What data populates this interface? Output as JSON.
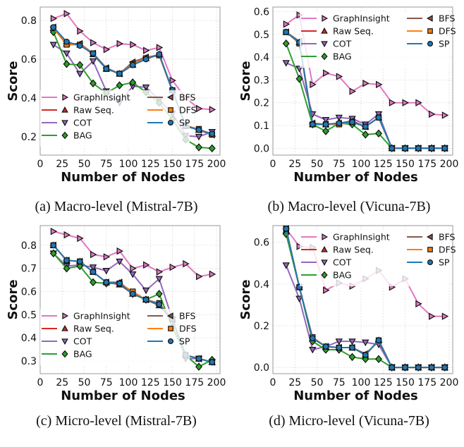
{
  "colors": {
    "GraphInsight": "#e377c2",
    "Raw Seq.": "#d62728",
    "COT": "#9467bd",
    "BAG": "#2ca02c",
    "BFS": "#8c564b",
    "DFS": "#ff7f0e",
    "SP": "#1f77b4"
  },
  "markers": {
    "GraphInsight": "triangle-right",
    "Raw Seq.": "triangle-up",
    "COT": "triangle-down",
    "BAG": "diamond",
    "BFS": "triangle-left",
    "DFS": "square",
    "SP": "circle"
  },
  "chart_data": [
    {
      "type": "line",
      "caption": "(a) Macro-level (Mistral-7B)",
      "xlabel": "Number of Nodes",
      "ylabel": "Score",
      "xlim": [
        0,
        204
      ],
      "ylim": [
        0.105,
        0.869
      ],
      "xticks": [
        0,
        25,
        50,
        75,
        100,
        125,
        150,
        175,
        200
      ],
      "yticks": [
        0.2,
        0.4,
        0.6,
        0.8
      ],
      "grid": true,
      "legend": "lower-left",
      "x": [
        15,
        30,
        45,
        60,
        75,
        90,
        105,
        120,
        135,
        150,
        165,
        180,
        195
      ],
      "series": [
        {
          "name": "GraphInsight",
          "values": [
            0.81,
            0.835,
            0.745,
            0.685,
            0.65,
            0.68,
            0.675,
            0.645,
            0.66,
            0.49,
            0.4,
            0.345,
            0.34
          ]
        },
        {
          "name": "Raw Seq.",
          "values": [
            0.76,
            0.68,
            0.675,
            0.625,
            0.55,
            0.525,
            0.57,
            0.605,
            0.625,
            0.44,
            0.255,
            0.235,
            0.215
          ]
        },
        {
          "name": "COT",
          "values": [
            0.675,
            0.63,
            0.525,
            0.59,
            0.435,
            0.375,
            0.46,
            0.455,
            0.39,
            0.32,
            0.205,
            0.2,
            0.225
          ]
        },
        {
          "name": "BAG",
          "values": [
            0.74,
            0.575,
            0.57,
            0.475,
            0.425,
            0.465,
            0.48,
            0.43,
            0.375,
            0.29,
            0.185,
            0.145,
            0.14
          ]
        },
        {
          "name": "BFS",
          "values": [
            0.765,
            0.68,
            0.68,
            0.63,
            0.555,
            0.525,
            0.585,
            0.61,
            0.62,
            0.435,
            0.26,
            0.235,
            0.21
          ]
        },
        {
          "name": "DFS",
          "values": [
            0.76,
            0.675,
            0.675,
            0.63,
            0.55,
            0.525,
            0.575,
            0.605,
            0.62,
            0.44,
            0.255,
            0.24,
            0.21
          ]
        },
        {
          "name": "SP",
          "values": [
            0.765,
            0.69,
            0.67,
            0.63,
            0.55,
            0.525,
            0.57,
            0.6,
            0.625,
            0.44,
            0.255,
            0.235,
            0.215
          ]
        }
      ]
    },
    {
      "type": "line",
      "caption": "(b) Macro-level (Vicuna-7B)",
      "xlabel": "Number of Nodes",
      "ylabel": "Score",
      "xlim": [
        0,
        204
      ],
      "ylim": [
        -0.03,
        0.62
      ],
      "xticks": [
        0,
        25,
        50,
        75,
        100,
        125,
        150,
        175,
        200
      ],
      "yticks": [
        0.0,
        0.1,
        0.2,
        0.3,
        0.4,
        0.5,
        0.6
      ],
      "grid": true,
      "legend": "upper-right",
      "x": [
        15,
        30,
        45,
        60,
        75,
        90,
        105,
        120,
        135,
        150,
        165,
        180,
        195
      ],
      "series": [
        {
          "name": "GraphInsight",
          "values": [
            0.545,
            0.585,
            0.28,
            0.33,
            0.315,
            0.25,
            0.285,
            0.28,
            0.2,
            0.2,
            0.2,
            0.15,
            0.145
          ]
        },
        {
          "name": "Raw Seq.",
          "values": [
            0.51,
            0.465,
            0.105,
            0.105,
            0.11,
            0.115,
            0.095,
            0.135,
            0,
            0,
            0,
            0,
            0
          ]
        },
        {
          "name": "COT",
          "values": [
            0.375,
            0.35,
            0.15,
            0.125,
            0.135,
            0.13,
            0.105,
            0.15,
            0,
            0,
            0,
            0,
            0
          ]
        },
        {
          "name": "BAG",
          "values": [
            0.46,
            0.305,
            0.105,
            0.075,
            0.11,
            0.105,
            0.06,
            0.065,
            0,
            0,
            0,
            0,
            0
          ]
        },
        {
          "name": "BFS",
          "values": [
            0.51,
            0.47,
            0.11,
            0.105,
            0.11,
            0.12,
            0.095,
            0.135,
            0,
            0,
            0,
            0,
            0
          ]
        },
        {
          "name": "DFS",
          "values": [
            0.51,
            0.46,
            0.105,
            0.105,
            0.105,
            0.115,
            0.095,
            0.135,
            0,
            0,
            0,
            0,
            0
          ]
        },
        {
          "name": "SP",
          "values": [
            0.51,
            0.465,
            0.105,
            0.105,
            0.11,
            0.115,
            0.095,
            0.135,
            0,
            0,
            0,
            0,
            0
          ]
        }
      ]
    },
    {
      "type": "line",
      "caption": "(c) Micro-level (Mistral-7B)",
      "xlabel": "Number of Nodes",
      "ylabel": "Score",
      "xlim": [
        0,
        204
      ],
      "ylim": [
        0.245,
        0.885
      ],
      "xticks": [
        0,
        25,
        50,
        75,
        100,
        125,
        150,
        175,
        200
      ],
      "yticks": [
        0.3,
        0.4,
        0.5,
        0.6,
        0.7,
        0.8
      ],
      "grid": true,
      "legend": "lower-left",
      "x": [
        15,
        30,
        45,
        60,
        75,
        90,
        105,
        120,
        135,
        150,
        165,
        180,
        195
      ],
      "series": [
        {
          "name": "GraphInsight",
          "values": [
            0.86,
            0.845,
            0.83,
            0.76,
            0.75,
            0.775,
            0.7,
            0.715,
            0.685,
            0.705,
            0.72,
            0.665,
            0.675
          ]
        },
        {
          "name": "Raw Seq.",
          "values": [
            0.8,
            0.735,
            0.73,
            0.685,
            0.64,
            0.63,
            0.59,
            0.565,
            0.54,
            0.48,
            0.325,
            0.31,
            0.295
          ]
        },
        {
          "name": "COT",
          "values": [
            0.765,
            0.71,
            0.715,
            0.705,
            0.69,
            0.73,
            0.675,
            0.605,
            0.655,
            0.48,
            0.31,
            0.31,
            0.295
          ]
        },
        {
          "name": "BAG",
          "values": [
            0.765,
            0.7,
            0.71,
            0.64,
            0.635,
            0.635,
            0.59,
            0.565,
            0.59,
            0.445,
            0.325,
            0.275,
            0.305
          ]
        },
        {
          "name": "BFS",
          "values": [
            0.8,
            0.735,
            0.73,
            0.685,
            0.64,
            0.64,
            0.595,
            0.565,
            0.54,
            0.475,
            0.325,
            0.31,
            0.295
          ]
        },
        {
          "name": "DFS",
          "values": [
            0.8,
            0.735,
            0.73,
            0.685,
            0.64,
            0.635,
            0.6,
            0.565,
            0.55,
            0.48,
            0.325,
            0.31,
            0.295
          ]
        },
        {
          "name": "SP",
          "values": [
            0.8,
            0.735,
            0.73,
            0.685,
            0.64,
            0.635,
            0.59,
            0.565,
            0.545,
            0.48,
            0.325,
            0.31,
            0.295
          ]
        }
      ]
    },
    {
      "type": "line",
      "caption": "(d) Micro-level (Vicuna-7B)",
      "xlabel": "Number of Nodes",
      "ylabel": "Score",
      "xlim": [
        0,
        204
      ],
      "ylim": [
        -0.03,
        0.68
      ],
      "xticks": [
        0,
        25,
        50,
        75,
        100,
        125,
        150,
        175,
        200
      ],
      "yticks": [
        0.0,
        0.2,
        0.4,
        0.6
      ],
      "grid": true,
      "legend": "upper-right",
      "x": [
        15,
        30,
        45,
        60,
        75,
        90,
        105,
        120,
        135,
        150,
        165,
        180,
        195
      ],
      "series": [
        {
          "name": "GraphInsight",
          "values": [
            0.665,
            0.58,
            0.575,
            0.37,
            0.405,
            0.39,
            0.425,
            0.465,
            0.385,
            0.425,
            0.305,
            0.245,
            0.245
          ]
        },
        {
          "name": "Raw Seq.",
          "values": [
            0.655,
            0.385,
            0.14,
            0.1,
            0.095,
            0.095,
            0.06,
            0.13,
            0,
            0,
            0,
            0,
            0
          ]
        },
        {
          "name": "COT",
          "values": [
            0.49,
            0.33,
            0.085,
            0.1,
            0.125,
            0.125,
            0.12,
            0.11,
            0,
            0,
            0,
            0,
            0
          ]
        },
        {
          "name": "BAG",
          "values": [
            0.64,
            0.385,
            0.125,
            0.085,
            0.085,
            0.05,
            0.04,
            0.04,
            0,
            0,
            0,
            0,
            0
          ]
        },
        {
          "name": "BFS",
          "values": [
            0.665,
            0.385,
            0.14,
            0.1,
            0.095,
            0.095,
            0.065,
            0.125,
            0,
            0,
            0,
            0,
            0
          ]
        },
        {
          "name": "DFS",
          "values": [
            0.665,
            0.385,
            0.145,
            0.1,
            0.095,
            0.095,
            0.06,
            0.13,
            0,
            0,
            0,
            0,
            0
          ]
        },
        {
          "name": "SP",
          "values": [
            0.665,
            0.385,
            0.14,
            0.1,
            0.095,
            0.095,
            0.06,
            0.13,
            0,
            0,
            0,
            0,
            0
          ]
        }
      ]
    }
  ]
}
